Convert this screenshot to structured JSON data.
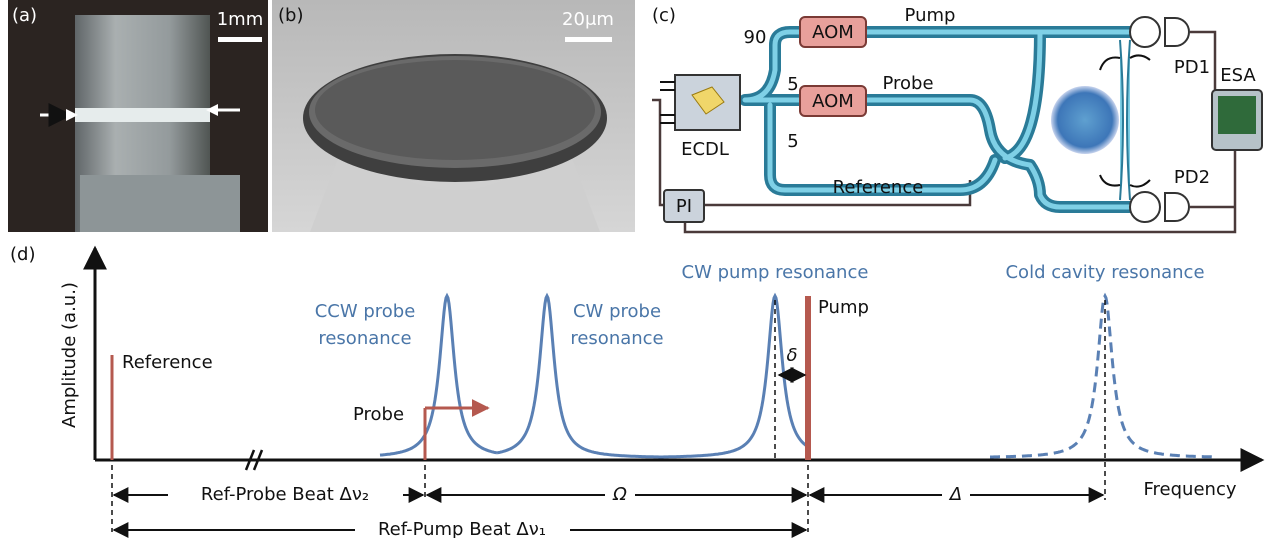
{
  "panels": {
    "a": {
      "label": "(a)",
      "scale_bar": "1mm"
    },
    "b": {
      "label": "(b)",
      "scale_bar": "20μm"
    },
    "c": {
      "label": "(c)",
      "split_ratios": [
        "90",
        "5",
        "5"
      ],
      "modulators": [
        "AOM",
        "AOM"
      ],
      "pump": "Pump",
      "probe": "Probe",
      "reference": "Reference",
      "laser": "ECDL",
      "controller": "PI",
      "detectors": [
        "PD1",
        "PD2"
      ],
      "analyzer": "ESA"
    },
    "d": {
      "label": "(d)",
      "y_axis": "Amplitude (a.u.)",
      "x_axis": "Frequency",
      "reference": "Reference",
      "probe": "Probe",
      "pump": "Pump",
      "ccw_probe_resonance": [
        "CCW probe",
        "resonance"
      ],
      "cw_probe_resonance": [
        "CW probe",
        "resonance"
      ],
      "cw_pump_resonance": "CW pump resonance",
      "cold_cavity_resonance": "Cold cavity resonance",
      "detuning": "δ",
      "ref_probe_beat": "Ref-Probe Beat Δν₂",
      "probe_pump_spacing": "Ω",
      "pump_shift": "Δ",
      "ref_pump_beat": "Ref-Pump Beat Δν₁"
    }
  }
}
